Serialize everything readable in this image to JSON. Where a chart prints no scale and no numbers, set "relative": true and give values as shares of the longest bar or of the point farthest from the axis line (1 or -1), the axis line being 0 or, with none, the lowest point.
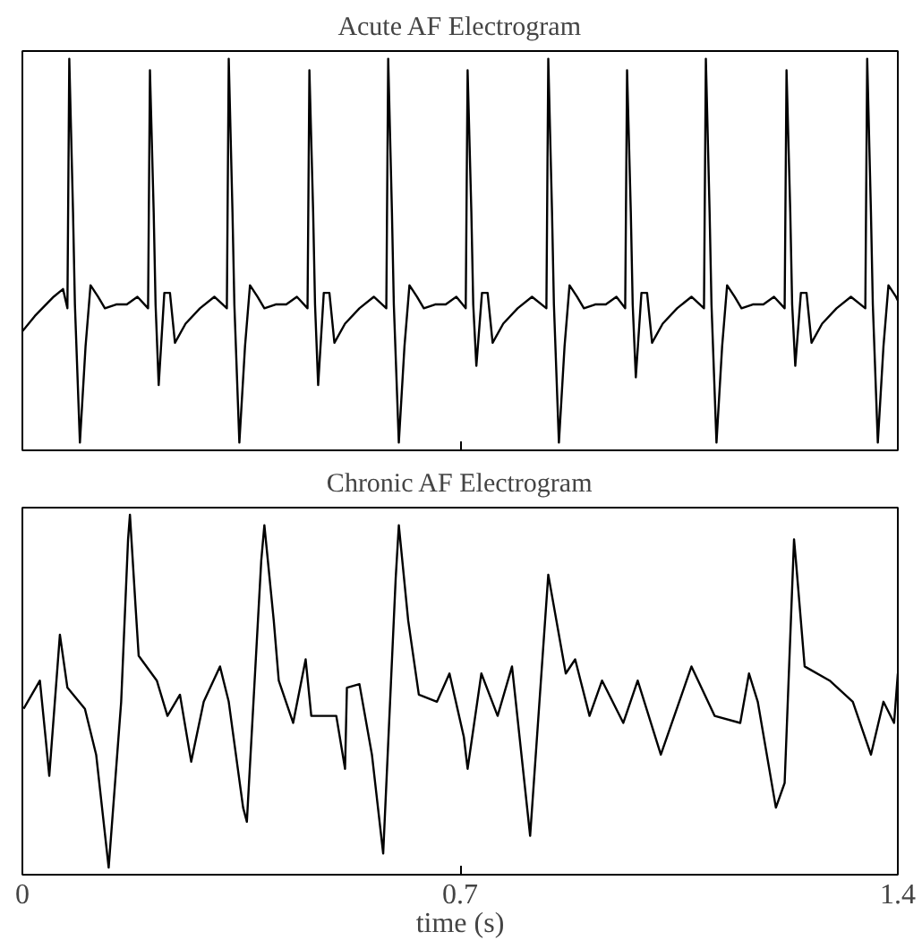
{
  "chart_data": [
    {
      "type": "line",
      "title": "Acute AF Electrogram",
      "relative": true,
      "xlim": [
        0,
        1.4
      ],
      "xticks": [
        0,
        0.7,
        1.4
      ],
      "tick_labels": false,
      "series": [
        {
          "color": "#000000",
          "x": [
            0,
            0.02,
            0.05,
            0.065,
            0.072,
            0.075,
            0.081,
            0.084,
            0.092,
            0.101,
            0.109,
            0.121,
            0.132,
            0.15,
            0.167,
            0.184,
            0.201,
            0.204,
            0.21,
            0.213,
            0.218,
            0.227,
            0.236,
            0.244,
            0.261,
            0.284,
            0.307,
            0.327,
            0.33,
            0.336,
            0.339,
            0.347,
            0.356,
            0.364,
            0.376,
            0.387,
            0.405,
            0.422,
            0.439,
            0.456,
            0.459,
            0.465,
            0.468,
            0.473,
            0.482,
            0.491,
            0.499,
            0.516,
            0.539,
            0.562,
            0.582,
            0.585,
            0.591,
            0.594,
            0.602,
            0.611,
            0.619,
            0.631,
            0.642,
            0.66,
            0.677,
            0.694,
            0.709,
            0.712,
            0.718,
            0.721,
            0.726,
            0.735,
            0.744,
            0.752,
            0.769,
            0.792,
            0.815,
            0.838,
            0.841,
            0.847,
            0.85,
            0.858,
            0.867,
            0.875,
            0.887,
            0.898,
            0.916,
            0.933,
            0.95,
            0.964,
            0.967,
            0.973,
            0.976,
            0.981,
            0.99,
            0.999,
            1.007,
            1.024,
            1.047,
            1.07,
            1.09,
            1.093,
            1.099,
            1.102,
            1.11,
            1.119,
            1.127,
            1.139,
            1.15,
            1.168,
            1.185,
            1.202,
            1.219,
            1.222,
            1.228,
            1.231,
            1.236,
            1.245,
            1.254,
            1.262,
            1.279,
            1.302,
            1.325,
            1.348,
            1.351,
            1.357,
            1.36,
            1.368,
            1.377,
            1.385,
            1.397,
            1.4
          ],
          "values": [
            0.29,
            0.33,
            0.38,
            0.4,
            0.35,
            1.0,
            0.6,
            0.36,
            0,
            0.25,
            0.41,
            0.38,
            0.35,
            0.36,
            0.36,
            0.38,
            0.35,
            0.97,
            0.6,
            0.36,
            0.15,
            0.39,
            0.39,
            0.26,
            0.31,
            0.35,
            0.38,
            0.35,
            1.0,
            0.6,
            0.36,
            0,
            0.25,
            0.41,
            0.38,
            0.35,
            0.36,
            0.36,
            0.38,
            0.35,
            0.97,
            0.6,
            0.36,
            0.15,
            0.39,
            0.39,
            0.26,
            0.31,
            0.35,
            0.38,
            0.35,
            1.0,
            0.6,
            0.36,
            0,
            0.25,
            0.41,
            0.38,
            0.35,
            0.36,
            0.36,
            0.38,
            0.35,
            0.97,
            0.6,
            0.36,
            0.2,
            0.39,
            0.39,
            0.26,
            0.31,
            0.35,
            0.38,
            0.35,
            1.0,
            0.6,
            0.36,
            0,
            0.25,
            0.41,
            0.38,
            0.35,
            0.36,
            0.36,
            0.38,
            0.35,
            0.97,
            0.6,
            0.36,
            0.17,
            0.39,
            0.39,
            0.26,
            0.31,
            0.35,
            0.38,
            0.35,
            1.0,
            0.6,
            0.36,
            0,
            0.25,
            0.41,
            0.38,
            0.35,
            0.36,
            0.36,
            0.38,
            0.35,
            0.97,
            0.6,
            0.36,
            0.2,
            0.39,
            0.39,
            0.26,
            0.31,
            0.35,
            0.38,
            0.35,
            1.0,
            0.6,
            0.36,
            0,
            0.25,
            0.41,
            0.38,
            0.37
          ]
        }
      ]
    },
    {
      "type": "line",
      "title": "Chronic AF Electrogram",
      "xlabel": "time (s)",
      "relative": true,
      "xlim": [
        0,
        1.4
      ],
      "xticks": [
        0,
        0.7,
        1.4
      ],
      "tick_labels": "x",
      "series": [
        {
          "color": "#000000",
          "x": [
            0.002,
            0.028,
            0.037,
            0.043,
            0.06,
            0.072,
            0.1,
            0.118,
            0.138,
            0.158,
            0.169,
            0.172,
            0.181,
            0.186,
            0.215,
            0.232,
            0.252,
            0.27,
            0.29,
            0.316,
            0.33,
            0.353,
            0.359,
            0.382,
            0.387,
            0.402,
            0.41,
            0.433,
            0.453,
            0.462,
            0.502,
            0.516,
            0.519,
            0.539,
            0.559,
            0.577,
            0.597,
            0.602,
            0.617,
            0.634,
            0.663,
            0.683,
            0.706,
            0.712,
            0.734,
            0.76,
            0.783,
            0.812,
            0.841,
            0.869,
            0.884,
            0.907,
            0.927,
            0.961,
            0.984,
            1.021,
            1.07,
            1.107,
            1.148,
            1.162,
            1.176,
            1.205,
            1.219,
            1.234,
            1.237,
            1.251,
            1.291,
            1.328,
            1.357,
            1.377,
            1.394,
            1.4
          ],
          "values": [
            0.45,
            0.53,
            0.37,
            0.26,
            0.66,
            0.51,
            0.45,
            0.32,
            0,
            0.47,
            0.93,
            1.0,
            0.74,
            0.6,
            0.53,
            0.43,
            0.49,
            0.3,
            0.47,
            0.57,
            0.47,
            0.17,
            0.13,
            0.87,
            0.97,
            0.7,
            0.53,
            0.41,
            0.59,
            0.43,
            0.43,
            0.28,
            0.51,
            0.52,
            0.32,
            0.04,
            0.82,
            0.97,
            0.7,
            0.49,
            0.47,
            0.55,
            0.37,
            0.28,
            0.55,
            0.43,
            0.57,
            0.09,
            0.83,
            0.55,
            0.59,
            0.43,
            0.53,
            0.41,
            0.53,
            0.32,
            0.57,
            0.43,
            0.41,
            0.55,
            0.47,
            0.17,
            0.24,
            0.93,
            0.87,
            0.57,
            0.53,
            0.47,
            0.32,
            0.47,
            0.41,
            0.55
          ]
        }
      ]
    }
  ]
}
